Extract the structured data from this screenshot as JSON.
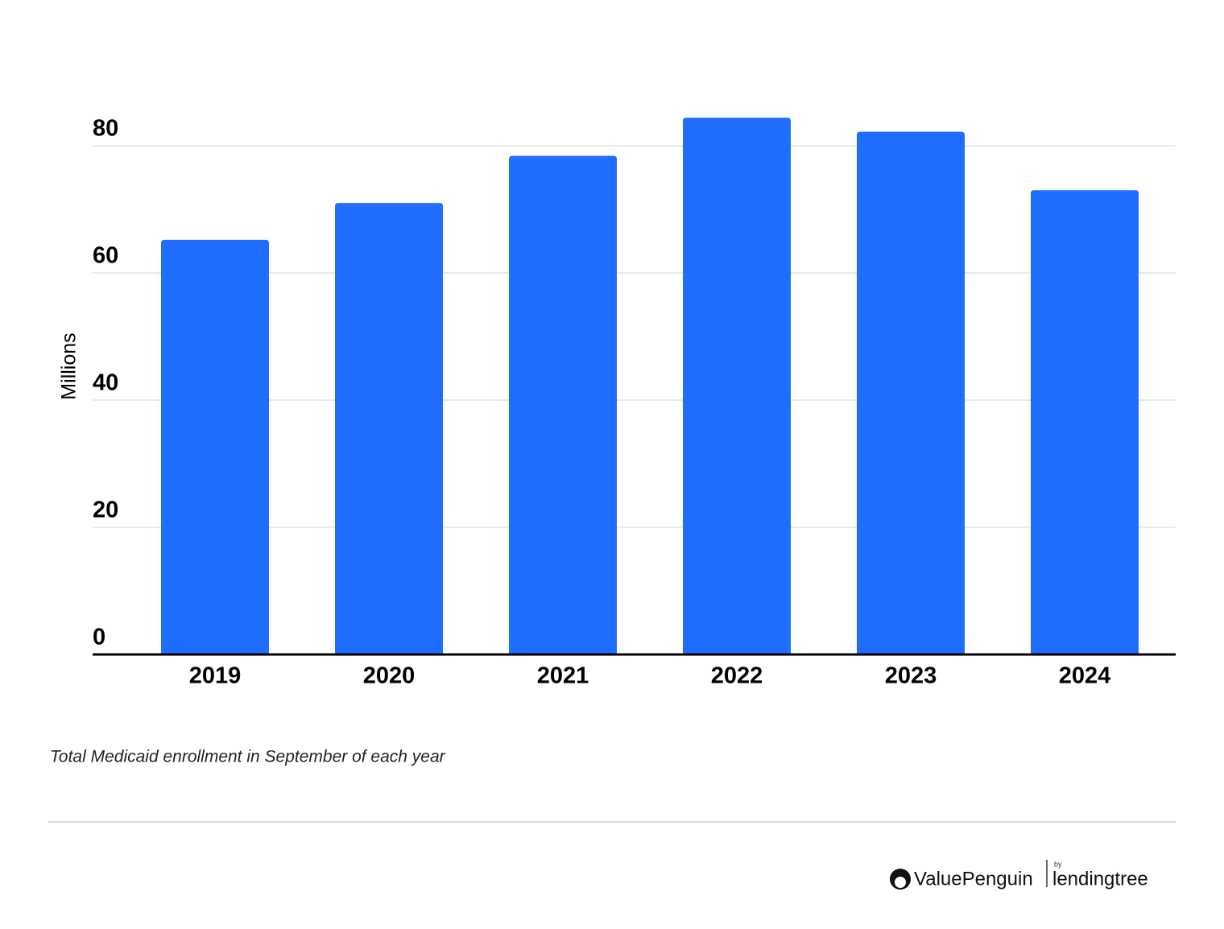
{
  "chart_data": {
    "type": "bar",
    "categories": [
      "2019",
      "2020",
      "2021",
      "2022",
      "2023",
      "2024"
    ],
    "values": [
      65.2,
      71.0,
      78.4,
      84.4,
      82.2,
      73.0
    ],
    "color": "#206eff",
    "y_label": "Millions",
    "ylim": [
      0,
      90
    ],
    "yticks": [
      0,
      20,
      40,
      60,
      80
    ],
    "grid": true,
    "note": "Total Medicaid enrollment in September of each year"
  },
  "logo": {
    "brand": "ValuePenguin",
    "by": "by",
    "partner": "lendingtree"
  }
}
